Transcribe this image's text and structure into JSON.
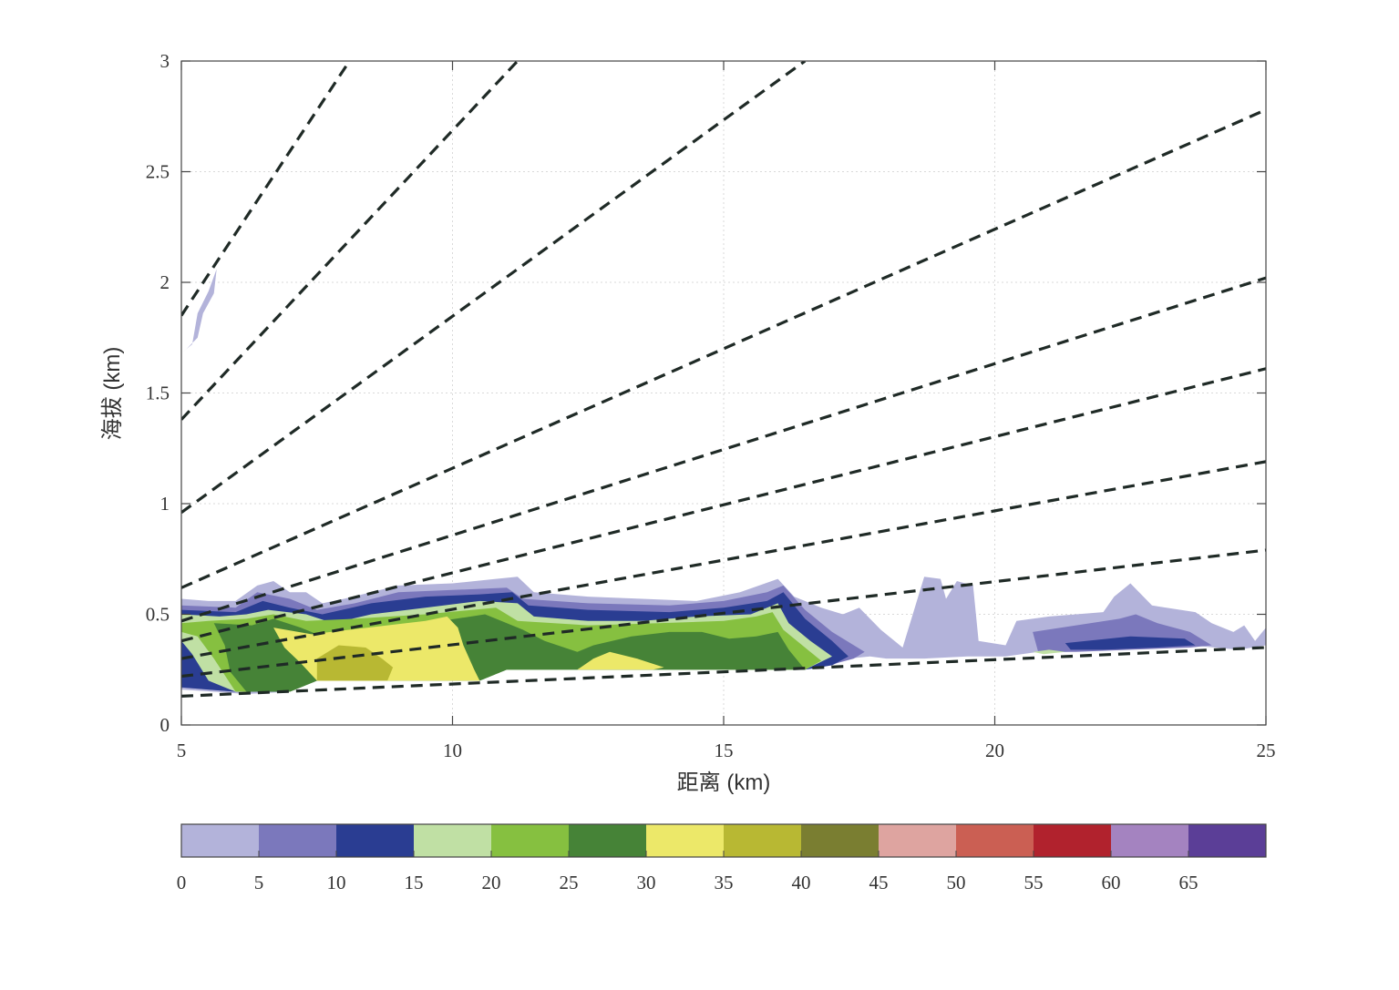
{
  "chart_data": {
    "type": "heatmap",
    "title": "",
    "xlabel": "距离 (km)",
    "ylabel": "海拔 (km)",
    "xlim": [
      5,
      25
    ],
    "ylim": [
      0,
      3
    ],
    "x_ticks": [
      "5",
      "10",
      "15",
      "20",
      "25"
    ],
    "y_ticks": [
      "0",
      "0.5",
      "1",
      "1.5",
      "2",
      "2.5",
      "3"
    ],
    "grid": true,
    "colorbar": {
      "orientation": "horizontal",
      "position": "bottom",
      "tick_labels": [
        "0",
        "5",
        "10",
        "15",
        "20",
        "25",
        "30",
        "35",
        "40",
        "45",
        "50",
        "55",
        "60",
        "65"
      ],
      "colors": [
        "#b3b3da",
        "#7b78bc",
        "#2a3d92",
        "#c0e0a4",
        "#86c040",
        "#468337",
        "#ece869",
        "#b8b833",
        "#7a7e31",
        "#dea4a0",
        "#cb5f53",
        "#b1222d",
        "#a483c0",
        "#5b3e97"
      ]
    },
    "beam_lines": [
      {
        "x": [
          5,
          8.1
        ],
        "y": [
          1.85,
          3.0
        ]
      },
      {
        "x": [
          5,
          11.2
        ],
        "y": [
          1.38,
          3.0
        ]
      },
      {
        "x": [
          5,
          16.5
        ],
        "y": [
          0.96,
          3.0
        ]
      },
      {
        "x": [
          5,
          25
        ],
        "y": [
          0.62,
          2.78
        ]
      },
      {
        "x": [
          5,
          25
        ],
        "y": [
          0.47,
          2.02
        ]
      },
      {
        "x": [
          5,
          25
        ],
        "y": [
          0.38,
          1.61
        ]
      },
      {
        "x": [
          5,
          25
        ],
        "y": [
          0.3,
          1.19
        ]
      },
      {
        "x": [
          5,
          25
        ],
        "y": [
          0.22,
          0.79
        ]
      },
      {
        "x": [
          5,
          25
        ],
        "y": [
          0.13,
          0.35
        ]
      }
    ],
    "contour_regions": [
      {
        "level": 0,
        "points": [
          [
            5,
            1.68
          ],
          [
            5.2,
            1.72
          ],
          [
            5.3,
            1.86
          ],
          [
            5.5,
            1.96
          ],
          [
            5.65,
            2.06
          ],
          [
            5.6,
            1.95
          ],
          [
            5.4,
            1.86
          ],
          [
            5.3,
            1.75
          ],
          [
            5.1,
            1.7
          ]
        ]
      },
      {
        "level": 0,
        "points": [
          [
            5,
            0.57
          ],
          [
            5.5,
            0.56
          ],
          [
            6,
            0.56
          ],
          [
            6.4,
            0.63
          ],
          [
            6.7,
            0.65
          ],
          [
            7,
            0.6
          ],
          [
            7.3,
            0.6
          ],
          [
            7.6,
            0.55
          ],
          [
            8,
            0.57
          ],
          [
            8.5,
            0.6
          ],
          [
            9,
            0.63
          ],
          [
            10,
            0.64
          ],
          [
            10.8,
            0.66
          ],
          [
            11.2,
            0.67
          ],
          [
            11.5,
            0.6
          ],
          [
            12.5,
            0.58
          ],
          [
            13.5,
            0.57
          ],
          [
            14.5,
            0.56
          ],
          [
            15.3,
            0.6
          ],
          [
            16,
            0.66
          ],
          [
            16.3,
            0.58
          ],
          [
            16.8,
            0.53
          ],
          [
            17.2,
            0.5
          ],
          [
            17.5,
            0.53
          ],
          [
            17.9,
            0.43
          ],
          [
            18.3,
            0.35
          ],
          [
            18.7,
            0.67
          ],
          [
            19,
            0.66
          ],
          [
            19.1,
            0.57
          ],
          [
            19.3,
            0.65
          ],
          [
            19.6,
            0.63
          ],
          [
            19.7,
            0.38
          ],
          [
            20.2,
            0.36
          ],
          [
            20.4,
            0.47
          ],
          [
            21,
            0.49
          ],
          [
            22,
            0.51
          ],
          [
            22.2,
            0.58
          ],
          [
            22.5,
            0.64
          ],
          [
            22.9,
            0.54
          ],
          [
            23.7,
            0.51
          ],
          [
            24,
            0.46
          ],
          [
            24.4,
            0.42
          ],
          [
            24.6,
            0.45
          ],
          [
            24.8,
            0.38
          ],
          [
            25,
            0.44
          ],
          [
            25,
            0.36
          ],
          [
            24.5,
            0.34
          ],
          [
            23.6,
            0.36
          ],
          [
            23,
            0.35
          ],
          [
            22,
            0.34
          ],
          [
            21.3,
            0.33
          ],
          [
            20.8,
            0.33
          ],
          [
            20.2,
            0.31
          ],
          [
            19.5,
            0.31
          ],
          [
            18.7,
            0.3
          ],
          [
            18,
            0.3
          ],
          [
            17.7,
            0.31
          ],
          [
            17.3,
            0.3
          ],
          [
            17,
            0.27
          ],
          [
            16.5,
            0.25
          ],
          [
            11,
            0.25
          ],
          [
            10.5,
            0.2
          ],
          [
            7.5,
            0.2
          ],
          [
            7,
            0.15
          ],
          [
            6.2,
            0.14
          ],
          [
            5.6,
            0.15
          ],
          [
            5,
            0.16
          ]
        ]
      },
      {
        "level": 5,
        "points": [
          [
            5,
            0.54
          ],
          [
            6,
            0.53
          ],
          [
            6.4,
            0.6
          ],
          [
            7,
            0.57
          ],
          [
            7.5,
            0.52
          ],
          [
            8.2,
            0.55
          ],
          [
            9,
            0.6
          ],
          [
            10,
            0.61
          ],
          [
            11,
            0.62
          ],
          [
            11.3,
            0.57
          ],
          [
            12.5,
            0.55
          ],
          [
            14,
            0.54
          ],
          [
            15,
            0.56
          ],
          [
            15.8,
            0.6
          ],
          [
            16.1,
            0.63
          ],
          [
            16.5,
            0.52
          ],
          [
            17,
            0.42
          ],
          [
            17.6,
            0.33
          ],
          [
            17.4,
            0.3
          ],
          [
            16.8,
            0.26
          ],
          [
            16,
            0.25
          ],
          [
            11,
            0.25
          ],
          [
            10.5,
            0.2
          ],
          [
            7.5,
            0.2
          ],
          [
            7,
            0.15
          ],
          [
            6,
            0.15
          ],
          [
            5,
            0.17
          ]
        ]
      },
      {
        "level": 5,
        "points": [
          [
            20.7,
            0.42
          ],
          [
            21.5,
            0.45
          ],
          [
            22.3,
            0.48
          ],
          [
            22.6,
            0.5
          ],
          [
            23,
            0.46
          ],
          [
            23.6,
            0.42
          ],
          [
            24,
            0.36
          ],
          [
            23.6,
            0.35
          ],
          [
            22.5,
            0.34
          ],
          [
            21.5,
            0.33
          ],
          [
            20.8,
            0.33
          ]
        ]
      },
      {
        "level": 10,
        "points": [
          [
            5,
            0.52
          ],
          [
            6,
            0.51
          ],
          [
            6.5,
            0.56
          ],
          [
            7,
            0.53
          ],
          [
            7.6,
            0.5
          ],
          [
            8.5,
            0.55
          ],
          [
            9.5,
            0.58
          ],
          [
            10.5,
            0.59
          ],
          [
            11.1,
            0.6
          ],
          [
            11.4,
            0.54
          ],
          [
            12.5,
            0.52
          ],
          [
            14,
            0.51
          ],
          [
            15,
            0.53
          ],
          [
            15.8,
            0.56
          ],
          [
            16.1,
            0.6
          ],
          [
            16.5,
            0.48
          ],
          [
            17,
            0.38
          ],
          [
            17.3,
            0.31
          ],
          [
            17,
            0.27
          ],
          [
            16.5,
            0.25
          ],
          [
            11,
            0.25
          ],
          [
            10.5,
            0.2
          ],
          [
            7.5,
            0.2
          ],
          [
            7,
            0.15
          ],
          [
            6,
            0.15
          ],
          [
            5,
            0.17
          ]
        ]
      },
      {
        "level": 10,
        "points": [
          [
            21.3,
            0.37
          ],
          [
            22.5,
            0.4
          ],
          [
            23.5,
            0.39
          ],
          [
            23.7,
            0.36
          ],
          [
            23,
            0.35
          ],
          [
            22,
            0.34
          ],
          [
            21.4,
            0.34
          ]
        ]
      },
      {
        "level": 15,
        "points": [
          [
            5,
            0.5
          ],
          [
            5.7,
            0.49
          ],
          [
            6.2,
            0.5
          ],
          [
            6.6,
            0.52
          ],
          [
            7.3,
            0.5
          ],
          [
            7.8,
            0.46
          ],
          [
            8.5,
            0.5
          ],
          [
            9.5,
            0.53
          ],
          [
            10.5,
            0.56
          ],
          [
            11.2,
            0.55
          ],
          [
            11.5,
            0.49
          ],
          [
            12.5,
            0.47
          ],
          [
            13.5,
            0.47
          ],
          [
            14.5,
            0.49
          ],
          [
            15.5,
            0.5
          ],
          [
            16,
            0.55
          ],
          [
            16.2,
            0.46
          ],
          [
            16.6,
            0.38
          ],
          [
            17,
            0.31
          ],
          [
            16.5,
            0.25
          ],
          [
            11,
            0.25
          ],
          [
            10.5,
            0.2
          ],
          [
            7.5,
            0.2
          ],
          [
            7,
            0.15
          ],
          [
            6,
            0.15
          ],
          [
            5.5,
            0.2
          ],
          [
            5.2,
            0.32
          ],
          [
            5,
            0.38
          ]
        ]
      },
      {
        "level": 15,
        "points": [
          [
            20.7,
            0.33
          ],
          [
            21,
            0.34
          ],
          [
            21.3,
            0.33
          ],
          [
            20.9,
            0.32
          ]
        ]
      },
      {
        "level": 20,
        "points": [
          [
            5,
            0.46
          ],
          [
            5.5,
            0.47
          ],
          [
            6.2,
            0.48
          ],
          [
            6.7,
            0.5
          ],
          [
            7.3,
            0.47
          ],
          [
            8.2,
            0.48
          ],
          [
            9.5,
            0.5
          ],
          [
            10.8,
            0.53
          ],
          [
            11.2,
            0.47
          ],
          [
            12.5,
            0.45
          ],
          [
            13.8,
            0.46
          ],
          [
            15,
            0.47
          ],
          [
            15.6,
            0.49
          ],
          [
            15.9,
            0.51
          ],
          [
            16.1,
            0.43
          ],
          [
            16.5,
            0.35
          ],
          [
            16.8,
            0.29
          ],
          [
            16.5,
            0.25
          ],
          [
            11,
            0.25
          ],
          [
            10.5,
            0.2
          ],
          [
            7.5,
            0.2
          ],
          [
            7,
            0.15
          ],
          [
            6,
            0.15
          ],
          [
            5.6,
            0.3
          ],
          [
            5.3,
            0.4
          ],
          [
            5,
            0.42
          ]
        ]
      },
      {
        "level": 25,
        "points": [
          [
            5.6,
            0.46
          ],
          [
            6.3,
            0.45
          ],
          [
            6.7,
            0.48
          ],
          [
            7.2,
            0.44
          ],
          [
            7.6,
            0.4
          ],
          [
            8.5,
            0.43
          ],
          [
            9.8,
            0.47
          ],
          [
            10.6,
            0.5
          ],
          [
            11.3,
            0.43
          ],
          [
            11.7,
            0.38
          ],
          [
            12.3,
            0.33
          ],
          [
            12.6,
            0.36
          ],
          [
            13.3,
            0.4
          ],
          [
            14,
            0.42
          ],
          [
            14.6,
            0.42
          ],
          [
            15.1,
            0.39
          ],
          [
            15.6,
            0.4
          ],
          [
            16,
            0.42
          ],
          [
            16.2,
            0.34
          ],
          [
            16.5,
            0.25
          ],
          [
            11,
            0.25
          ],
          [
            10.5,
            0.2
          ],
          [
            7.5,
            0.2
          ],
          [
            7,
            0.15
          ],
          [
            6.2,
            0.15
          ],
          [
            5.9,
            0.24
          ],
          [
            5.8,
            0.36
          ]
        ]
      },
      {
        "level": 30,
        "points": [
          [
            6.7,
            0.44
          ],
          [
            7.4,
            0.41
          ],
          [
            8.1,
            0.43
          ],
          [
            8.8,
            0.45
          ],
          [
            9.5,
            0.47
          ],
          [
            9.9,
            0.49
          ],
          [
            10.1,
            0.44
          ],
          [
            10.2,
            0.36
          ],
          [
            10.4,
            0.25
          ],
          [
            10.5,
            0.2
          ],
          [
            7.5,
            0.2
          ],
          [
            7.2,
            0.28
          ],
          [
            6.9,
            0.35
          ]
        ]
      },
      {
        "level": 30,
        "points": [
          [
            12.3,
            0.25
          ],
          [
            12.6,
            0.3
          ],
          [
            12.9,
            0.33
          ],
          [
            13.4,
            0.3
          ],
          [
            13.9,
            0.26
          ],
          [
            13.7,
            0.25
          ]
        ]
      },
      {
        "level": 35,
        "points": [
          [
            7.5,
            0.3
          ],
          [
            7.9,
            0.36
          ],
          [
            8.4,
            0.35
          ],
          [
            8.7,
            0.3
          ],
          [
            8.9,
            0.26
          ],
          [
            8.8,
            0.2
          ],
          [
            7.5,
            0.2
          ]
        ]
      }
    ]
  }
}
